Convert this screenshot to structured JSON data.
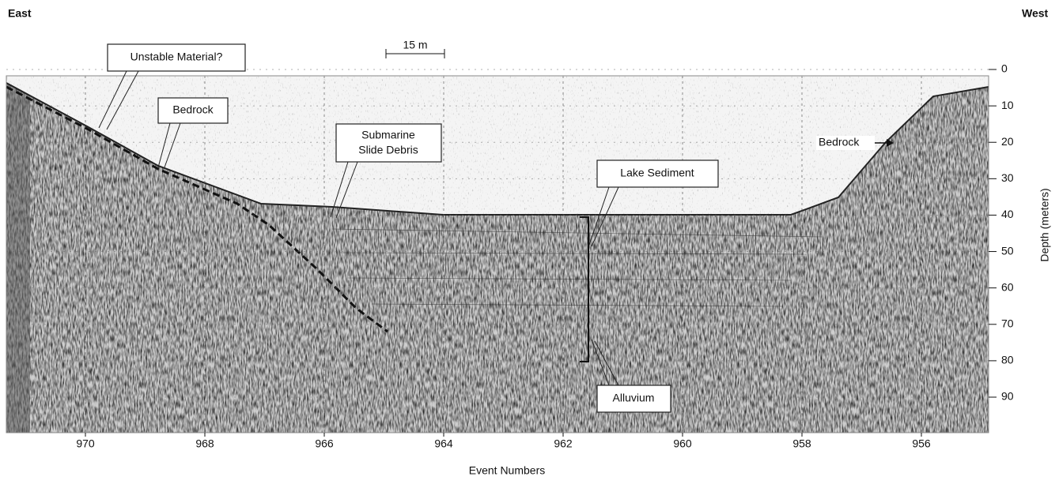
{
  "header": {
    "left": "East",
    "right": "West"
  },
  "scale_bar": "15 m",
  "x_axis": {
    "label": "Event Numbers",
    "ticks": [
      970,
      968,
      966,
      964,
      962,
      960,
      958,
      956
    ]
  },
  "y_axis": {
    "label": "Depth (meters)",
    "ticks": [
      0,
      10,
      20,
      30,
      40,
      50,
      60,
      70,
      80,
      90
    ]
  },
  "annotations": {
    "unstable": "Unstable Material?",
    "bedrock_left": "Bedrock",
    "slide_debris": [
      "Submarine",
      "Slide Debris"
    ],
    "lake_sediment": "Lake Sediment",
    "alluvium": "Alluvium",
    "bedrock_right": "Bedrock"
  }
}
